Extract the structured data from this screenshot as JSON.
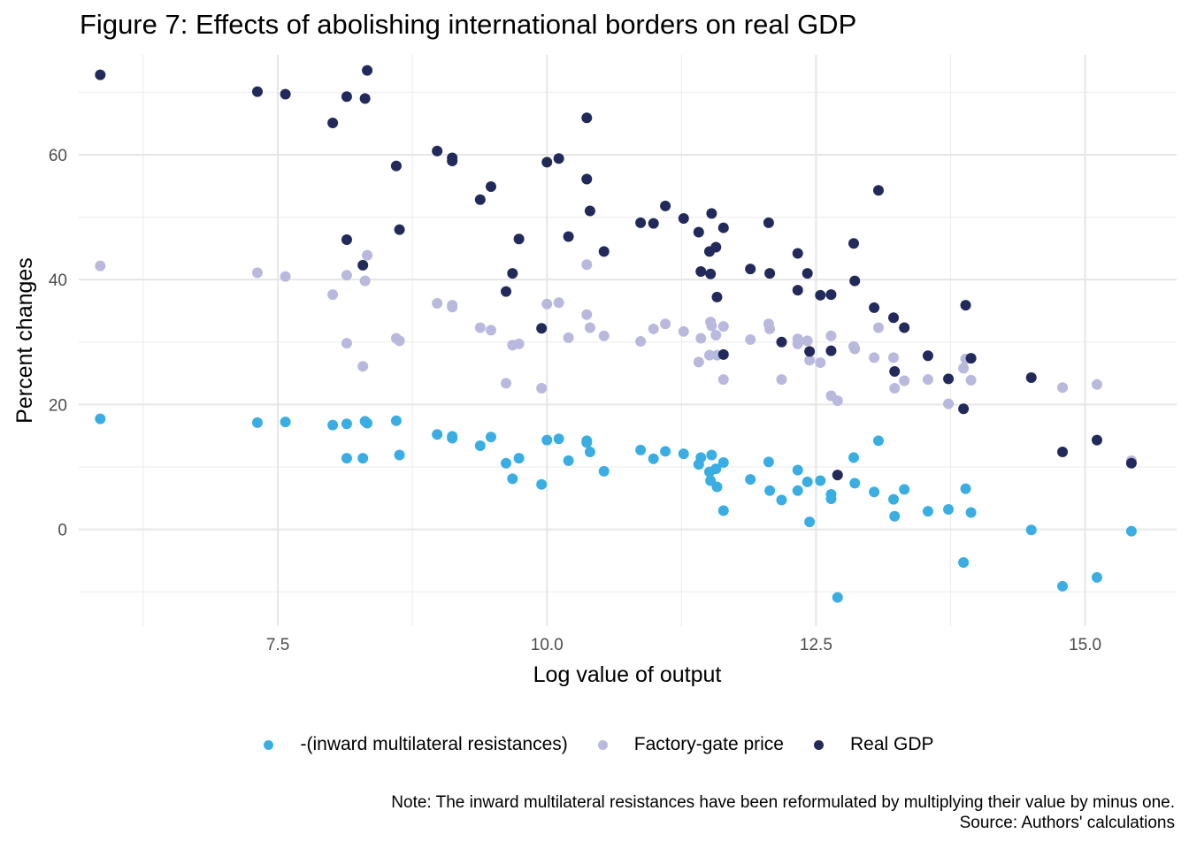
{
  "chart_data": {
    "type": "scatter",
    "title": "Figure 7: Effects of abolishing international borders on real GDP",
    "xlabel": "Log value of output",
    "ylabel": "Percent changes",
    "xlim": [
      5.65,
      15.85
    ],
    "ylim": [
      -15.5,
      76
    ],
    "xticks": [
      7.5,
      10.0,
      12.5,
      15.0
    ],
    "xtick_labels": [
      "7.5",
      "10.0",
      "12.5",
      "15.0"
    ],
    "yticks": [
      0,
      20,
      40,
      60
    ],
    "ytick_labels": [
      "0",
      "20",
      "40",
      "60"
    ],
    "x_minor": [
      6.25,
      8.75,
      11.25,
      13.75
    ],
    "y_minor": [
      -10,
      10,
      30,
      50,
      70
    ],
    "grid": true,
    "legend_position": "bottom",
    "series": [
      {
        "name": "-(inward multilateral resistances)",
        "color": "#3aaee2",
        "points": [
          [
            5.85,
            17.7
          ],
          [
            7.31,
            17.1
          ],
          [
            7.57,
            17.2
          ],
          [
            8.01,
            16.7
          ],
          [
            8.14,
            11.4
          ],
          [
            8.14,
            16.9
          ],
          [
            8.29,
            11.4
          ],
          [
            8.31,
            17.3
          ],
          [
            8.33,
            17.0
          ],
          [
            8.6,
            17.4
          ],
          [
            8.63,
            11.9
          ],
          [
            8.98,
            15.2
          ],
          [
            9.12,
            14.9
          ],
          [
            9.12,
            14.6
          ],
          [
            9.38,
            13.4
          ],
          [
            9.48,
            14.8
          ],
          [
            9.62,
            10.6
          ],
          [
            9.68,
            8.1
          ],
          [
            9.74,
            11.4
          ],
          [
            9.95,
            7.2
          ],
          [
            10.0,
            14.3
          ],
          [
            10.11,
            14.5
          ],
          [
            10.2,
            11.0
          ],
          [
            10.37,
            14.2
          ],
          [
            10.37,
            13.9
          ],
          [
            10.4,
            12.4
          ],
          [
            10.53,
            9.3
          ],
          [
            10.87,
            12.7
          ],
          [
            10.99,
            11.3
          ],
          [
            11.1,
            12.5
          ],
          [
            11.27,
            12.1
          ],
          [
            11.41,
            10.4
          ],
          [
            11.43,
            11.5
          ],
          [
            11.51,
            9.2
          ],
          [
            11.52,
            7.8
          ],
          [
            11.53,
            11.9
          ],
          [
            11.57,
            9.7
          ],
          [
            11.58,
            6.8
          ],
          [
            11.64,
            10.7
          ],
          [
            11.64,
            3.0
          ],
          [
            11.89,
            8.0
          ],
          [
            12.06,
            10.8
          ],
          [
            12.07,
            6.2
          ],
          [
            12.18,
            4.7
          ],
          [
            12.33,
            9.5
          ],
          [
            12.33,
            6.2
          ],
          [
            12.42,
            7.6
          ],
          [
            12.44,
            1.2
          ],
          [
            12.54,
            7.8
          ],
          [
            12.64,
            5.6
          ],
          [
            12.64,
            4.9
          ],
          [
            12.7,
            -10.9
          ],
          [
            12.85,
            11.5
          ],
          [
            12.86,
            7.4
          ],
          [
            13.04,
            6.0
          ],
          [
            13.08,
            14.2
          ],
          [
            13.22,
            4.8
          ],
          [
            13.23,
            2.1
          ],
          [
            13.32,
            6.4
          ],
          [
            13.54,
            2.9
          ],
          [
            13.73,
            3.2
          ],
          [
            13.87,
            -5.3
          ],
          [
            13.89,
            6.5
          ],
          [
            13.94,
            2.7
          ],
          [
            14.5,
            -0.1
          ],
          [
            14.79,
            -9.1
          ],
          [
            15.11,
            -7.7
          ],
          [
            15.43,
            -0.3
          ]
        ]
      },
      {
        "name": "Factory-gate price",
        "color": "#b9b9de",
        "points": [
          [
            5.85,
            42.2
          ],
          [
            7.31,
            41.1
          ],
          [
            7.57,
            40.5
          ],
          [
            8.01,
            37.6
          ],
          [
            8.14,
            40.7
          ],
          [
            8.14,
            29.8
          ],
          [
            8.29,
            26.1
          ],
          [
            8.31,
            39.8
          ],
          [
            8.33,
            43.9
          ],
          [
            8.6,
            30.6
          ],
          [
            8.63,
            30.2
          ],
          [
            8.98,
            36.2
          ],
          [
            9.12,
            35.9
          ],
          [
            9.12,
            35.6
          ],
          [
            9.38,
            32.3
          ],
          [
            9.48,
            31.9
          ],
          [
            9.62,
            23.4
          ],
          [
            9.68,
            29.5
          ],
          [
            9.74,
            29.7
          ],
          [
            9.95,
            22.6
          ],
          [
            10.0,
            36.1
          ],
          [
            10.11,
            36.3
          ],
          [
            10.2,
            30.7
          ],
          [
            10.37,
            42.4
          ],
          [
            10.37,
            34.4
          ],
          [
            10.4,
            32.3
          ],
          [
            10.53,
            31.0
          ],
          [
            10.87,
            30.1
          ],
          [
            10.99,
            32.1
          ],
          [
            11.1,
            32.9
          ],
          [
            11.27,
            31.7
          ],
          [
            11.41,
            26.8
          ],
          [
            11.43,
            30.6
          ],
          [
            11.51,
            27.9
          ],
          [
            11.52,
            33.2
          ],
          [
            11.53,
            32.6
          ],
          [
            11.57,
            31.1
          ],
          [
            11.58,
            27.9
          ],
          [
            11.64,
            32.5
          ],
          [
            11.64,
            24.0
          ],
          [
            11.89,
            30.4
          ],
          [
            12.06,
            32.9
          ],
          [
            12.07,
            32.1
          ],
          [
            12.18,
            24.0
          ],
          [
            12.33,
            30.5
          ],
          [
            12.33,
            29.7
          ],
          [
            12.42,
            30.2
          ],
          [
            12.44,
            27.1
          ],
          [
            12.54,
            26.7
          ],
          [
            12.64,
            31.0
          ],
          [
            12.64,
            21.4
          ],
          [
            12.7,
            20.6
          ],
          [
            12.85,
            29.3
          ],
          [
            12.86,
            28.9
          ],
          [
            13.04,
            27.5
          ],
          [
            13.08,
            32.3
          ],
          [
            13.22,
            27.5
          ],
          [
            13.23,
            22.6
          ],
          [
            13.32,
            23.8
          ],
          [
            13.54,
            24.0
          ],
          [
            13.73,
            20.1
          ],
          [
            13.87,
            25.8
          ],
          [
            13.89,
            27.3
          ],
          [
            13.94,
            23.9
          ],
          [
            14.79,
            22.7
          ],
          [
            15.11,
            23.2
          ],
          [
            15.43,
            11.0
          ]
        ]
      },
      {
        "name": "Real GDP",
        "color": "#222a5c",
        "points": [
          [
            5.85,
            72.8
          ],
          [
            7.31,
            70.1
          ],
          [
            7.57,
            69.7
          ],
          [
            8.01,
            65.1
          ],
          [
            8.14,
            69.3
          ],
          [
            8.14,
            46.4
          ],
          [
            8.29,
            42.3
          ],
          [
            8.31,
            69.0
          ],
          [
            8.33,
            73.5
          ],
          [
            8.6,
            58.2
          ],
          [
            8.63,
            48.0
          ],
          [
            8.98,
            60.6
          ],
          [
            9.12,
            59.5
          ],
          [
            9.12,
            59.0
          ],
          [
            9.38,
            52.8
          ],
          [
            9.48,
            54.9
          ],
          [
            9.62,
            38.1
          ],
          [
            9.68,
            41.0
          ],
          [
            9.74,
            46.5
          ],
          [
            9.95,
            32.2
          ],
          [
            10.0,
            58.8
          ],
          [
            10.11,
            59.4
          ],
          [
            10.2,
            46.9
          ],
          [
            10.37,
            65.9
          ],
          [
            10.37,
            56.1
          ],
          [
            10.4,
            51.0
          ],
          [
            10.53,
            44.5
          ],
          [
            10.87,
            49.1
          ],
          [
            10.99,
            49.0
          ],
          [
            11.1,
            51.8
          ],
          [
            11.27,
            49.8
          ],
          [
            11.41,
            47.6
          ],
          [
            11.43,
            41.3
          ],
          [
            11.51,
            44.5
          ],
          [
            11.52,
            40.9
          ],
          [
            11.53,
            50.6
          ],
          [
            11.57,
            45.2
          ],
          [
            11.58,
            37.2
          ],
          [
            11.64,
            48.3
          ],
          [
            11.64,
            28.0
          ],
          [
            11.89,
            41.7
          ],
          [
            12.06,
            49.1
          ],
          [
            12.07,
            41.0
          ],
          [
            12.18,
            30.0
          ],
          [
            12.33,
            44.2
          ],
          [
            12.33,
            38.3
          ],
          [
            12.42,
            41.0
          ],
          [
            12.44,
            28.5
          ],
          [
            12.54,
            37.5
          ],
          [
            12.64,
            37.6
          ],
          [
            12.64,
            28.6
          ],
          [
            12.7,
            8.7
          ],
          [
            12.85,
            45.8
          ],
          [
            12.86,
            39.8
          ],
          [
            13.04,
            35.5
          ],
          [
            13.08,
            54.3
          ],
          [
            13.22,
            33.9
          ],
          [
            13.23,
            25.3
          ],
          [
            13.32,
            32.3
          ],
          [
            13.54,
            27.8
          ],
          [
            13.73,
            24.1
          ],
          [
            13.87,
            19.3
          ],
          [
            13.89,
            35.9
          ],
          [
            13.94,
            27.4
          ],
          [
            14.5,
            24.3
          ],
          [
            14.79,
            12.4
          ],
          [
            15.11,
            14.3
          ],
          [
            15.43,
            10.6
          ]
        ]
      }
    ]
  },
  "legend": {
    "items": [
      {
        "label": "-(inward multilateral resistances)",
        "color": "#3aaee2"
      },
      {
        "label": "Factory-gate price",
        "color": "#b9b9de"
      },
      {
        "label": "Real GDP",
        "color": "#222a5c"
      }
    ]
  },
  "caption": {
    "note": "Note: The inward multilateral resistances have been reformulated by multiplying their value by minus one.",
    "source": "Source: Authors' calculations"
  }
}
